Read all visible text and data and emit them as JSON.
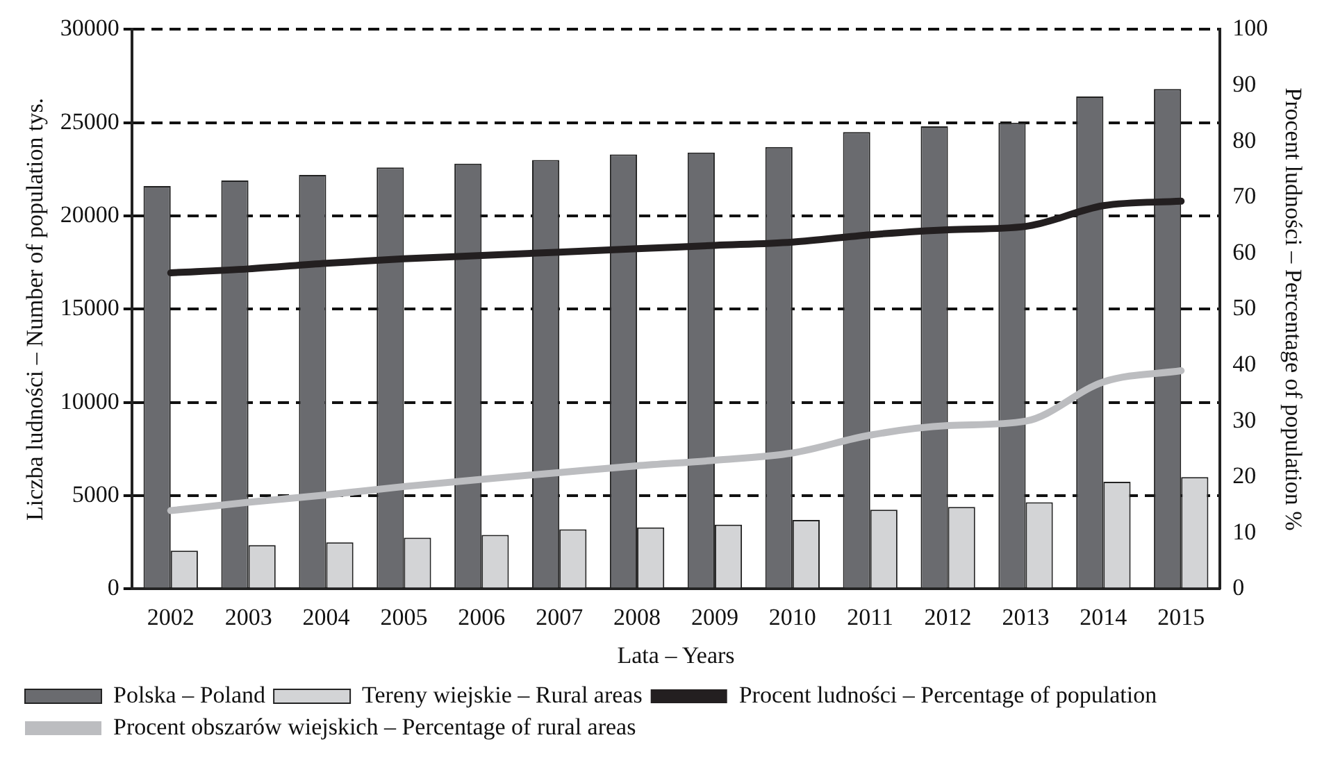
{
  "chart_data": {
    "type": "bar",
    "xlabel": "Lata – Years",
    "ylabel": "Liczba ludności – Number of population tys.",
    "y2label": "Procent ludności – Percentage of population %",
    "categories": [
      "2002",
      "2003",
      "2004",
      "2005",
      "2006",
      "2007",
      "2008",
      "2009",
      "2010",
      "2011",
      "2012",
      "2013",
      "2014",
      "2015"
    ],
    "series": [
      {
        "name": "Polska – Poland",
        "color": "#6a6b6f",
        "values": [
          21600,
          21900,
          22200,
          22600,
          22800,
          23000,
          23300,
          23400,
          23700,
          24500,
          24800,
          25000,
          26400,
          26800
        ]
      },
      {
        "name": "Tereny wiejskie – Rural areas",
        "color": "#d3d4d6",
        "values": [
          2050,
          2350,
          2500,
          2750,
          2900,
          3200,
          3300,
          3450,
          3700,
          4250,
          4400,
          4650,
          5750,
          6000
        ]
      },
      {
        "name": "Procent ludności – Percentage of population",
        "type": "line",
        "axis": "y2",
        "color": "#231f20",
        "values": [
          56.5,
          57.2,
          58.2,
          59.0,
          59.6,
          60.2,
          60.8,
          61.4,
          62.0,
          63.3,
          64.2,
          64.8,
          68.5,
          69.3
        ]
      },
      {
        "name": "Procent obszarów wiejskich – Percentage of rural areas",
        "type": "line",
        "axis": "y2",
        "color": "#bcbdc0",
        "values": [
          14,
          15.5,
          16.8,
          18.3,
          19.6,
          20.8,
          22,
          23,
          24.3,
          27.5,
          29.2,
          30,
          37,
          39
        ]
      }
    ],
    "ylim": [
      0,
      30000
    ],
    "yticks": [
      0,
      5000,
      10000,
      15000,
      20000,
      25000,
      30000
    ],
    "y2lim": [
      0,
      100
    ],
    "y2ticks": [
      0,
      10,
      20,
      30,
      40,
      50,
      60,
      70,
      80,
      90,
      100
    ],
    "grid": "y",
    "legend": "bottom",
    "marker": "none"
  }
}
